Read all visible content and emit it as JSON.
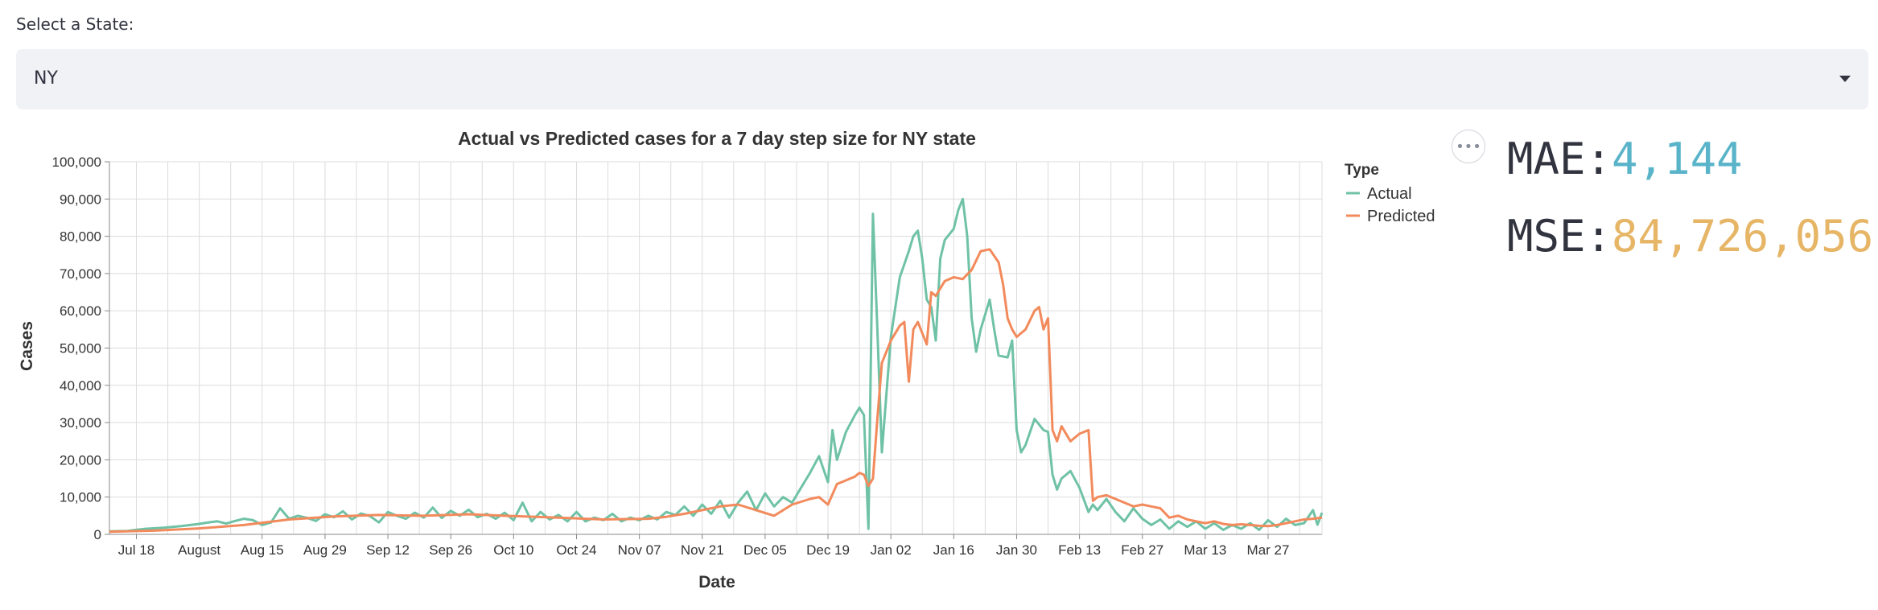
{
  "state_select": {
    "label": "Select a State:",
    "value": "NY"
  },
  "metrics": {
    "mae_label": "MAE:",
    "mae_value": "4,144",
    "mae_color": "#5ab4c9",
    "mse_label": "MSE:",
    "mse_value": "84,726,056",
    "mse_color": "#e6b566"
  },
  "chart_data": {
    "type": "line",
    "title": "Actual vs Predicted cases for a 7 day step size for NY state",
    "xlabel": "Date",
    "ylabel": "Cases",
    "ylim": [
      0,
      100000
    ],
    "y_ticks": [
      0,
      10000,
      20000,
      30000,
      40000,
      50000,
      60000,
      70000,
      80000,
      90000,
      100000
    ],
    "x_tick_labels": [
      "Jul 18",
      "August",
      "Aug 15",
      "Aug 29",
      "Sep 12",
      "Sep 26",
      "Oct 10",
      "Oct 24",
      "Nov 07",
      "Nov 21",
      "Dec 05",
      "Dec 19",
      "Jan 02",
      "Jan 16",
      "Jan 30",
      "Feb 13",
      "Feb 27",
      "Mar 13",
      "Mar 27"
    ],
    "x_tick_days": [
      6,
      20,
      34,
      48,
      62,
      76,
      90,
      104,
      118,
      132,
      146,
      160,
      174,
      188,
      202,
      216,
      230,
      244,
      258
    ],
    "x_range_days": [
      0,
      270
    ],
    "grid": true,
    "legend_title": "Type",
    "legend_position": "top-right",
    "series": [
      {
        "name": "Actual",
        "color": "#6fc2a5",
        "points": [
          [
            0,
            800
          ],
          [
            4,
            900
          ],
          [
            6,
            1200
          ],
          [
            8,
            1500
          ],
          [
            12,
            1800
          ],
          [
            16,
            2200
          ],
          [
            20,
            2800
          ],
          [
            22,
            3200
          ],
          [
            24,
            3500
          ],
          [
            26,
            2900
          ],
          [
            28,
            3600
          ],
          [
            30,
            4200
          ],
          [
            32,
            3800
          ],
          [
            34,
            2500
          ],
          [
            36,
            3200
          ],
          [
            38,
            7000
          ],
          [
            40,
            4200
          ],
          [
            42,
            5000
          ],
          [
            44,
            4400
          ],
          [
            46,
            3600
          ],
          [
            48,
            5400
          ],
          [
            50,
            4600
          ],
          [
            52,
            6200
          ],
          [
            54,
            4000
          ],
          [
            56,
            5600
          ],
          [
            58,
            4900
          ],
          [
            60,
            3200
          ],
          [
            62,
            6000
          ],
          [
            64,
            5000
          ],
          [
            66,
            4200
          ],
          [
            68,
            5800
          ],
          [
            70,
            4500
          ],
          [
            72,
            7200
          ],
          [
            74,
            4400
          ],
          [
            76,
            6300
          ],
          [
            78,
            5000
          ],
          [
            80,
            6600
          ],
          [
            82,
            4600
          ],
          [
            84,
            5500
          ],
          [
            86,
            4200
          ],
          [
            88,
            5800
          ],
          [
            90,
            3800
          ],
          [
            92,
            8500
          ],
          [
            94,
            3500
          ],
          [
            96,
            6000
          ],
          [
            98,
            4000
          ],
          [
            100,
            5200
          ],
          [
            102,
            3500
          ],
          [
            104,
            6000
          ],
          [
            106,
            3500
          ],
          [
            108,
            4500
          ],
          [
            110,
            3800
          ],
          [
            112,
            5500
          ],
          [
            114,
            3500
          ],
          [
            116,
            4500
          ],
          [
            118,
            3800
          ],
          [
            120,
            5000
          ],
          [
            122,
            4000
          ],
          [
            124,
            6000
          ],
          [
            126,
            5200
          ],
          [
            128,
            7500
          ],
          [
            130,
            5000
          ],
          [
            132,
            8000
          ],
          [
            134,
            5500
          ],
          [
            136,
            9000
          ],
          [
            138,
            4500
          ],
          [
            140,
            8500
          ],
          [
            142,
            11500
          ],
          [
            144,
            6500
          ],
          [
            146,
            11000
          ],
          [
            148,
            7500
          ],
          [
            150,
            10000
          ],
          [
            152,
            8500
          ],
          [
            154,
            12500
          ],
          [
            156,
            16500
          ],
          [
            158,
            21000
          ],
          [
            160,
            14000
          ],
          [
            161,
            28000
          ],
          [
            162,
            20000
          ],
          [
            164,
            27500
          ],
          [
            166,
            32000
          ],
          [
            167,
            34000
          ],
          [
            168,
            32000
          ],
          [
            169,
            1500
          ],
          [
            170,
            86000
          ],
          [
            171,
            55000
          ],
          [
            172,
            22000
          ],
          [
            174,
            53000
          ],
          [
            176,
            69000
          ],
          [
            178,
            76000
          ],
          [
            179,
            80000
          ],
          [
            180,
            81500
          ],
          [
            181,
            74000
          ],
          [
            182,
            63000
          ],
          [
            183,
            61000
          ],
          [
            184,
            52000
          ],
          [
            185,
            74000
          ],
          [
            186,
            79000
          ],
          [
            188,
            82000
          ],
          [
            189,
            87000
          ],
          [
            190,
            90000
          ],
          [
            191,
            80000
          ],
          [
            192,
            58000
          ],
          [
            193,
            49000
          ],
          [
            194,
            55000
          ],
          [
            196,
            63000
          ],
          [
            197,
            55000
          ],
          [
            198,
            48000
          ],
          [
            200,
            47500
          ],
          [
            201,
            52000
          ],
          [
            202,
            28000
          ],
          [
            203,
            22000
          ],
          [
            204,
            24000
          ],
          [
            206,
            31000
          ],
          [
            208,
            28000
          ],
          [
            209,
            27500
          ],
          [
            210,
            16000
          ],
          [
            211,
            12000
          ],
          [
            212,
            15000
          ],
          [
            214,
            17000
          ],
          [
            216,
            12500
          ],
          [
            218,
            6000
          ],
          [
            219,
            8000
          ],
          [
            220,
            6500
          ],
          [
            222,
            9500
          ],
          [
            224,
            6000
          ],
          [
            226,
            3500
          ],
          [
            228,
            7000
          ],
          [
            230,
            4200
          ],
          [
            232,
            2500
          ],
          [
            234,
            4000
          ],
          [
            236,
            1500
          ],
          [
            238,
            3500
          ],
          [
            240,
            2000
          ],
          [
            242,
            3500
          ],
          [
            244,
            1500
          ],
          [
            246,
            3000
          ],
          [
            248,
            1200
          ],
          [
            250,
            2500
          ],
          [
            252,
            1500
          ],
          [
            254,
            3000
          ],
          [
            256,
            1200
          ],
          [
            258,
            3800
          ],
          [
            260,
            2000
          ],
          [
            262,
            4200
          ],
          [
            264,
            2500
          ],
          [
            266,
            3000
          ],
          [
            268,
            6500
          ],
          [
            269,
            2600
          ],
          [
            270,
            5800
          ]
        ]
      },
      {
        "name": "Predicted",
        "color": "#f28a5c",
        "points": [
          [
            0,
            700
          ],
          [
            10,
            1000
          ],
          [
            20,
            1600
          ],
          [
            30,
            2500
          ],
          [
            40,
            4000
          ],
          [
            50,
            4800
          ],
          [
            60,
            5200
          ],
          [
            70,
            5000
          ],
          [
            80,
            5400
          ],
          [
            90,
            4900
          ],
          [
            100,
            4500
          ],
          [
            110,
            4000
          ],
          [
            120,
            4200
          ],
          [
            124,
            4700
          ],
          [
            128,
            5500
          ],
          [
            132,
            6500
          ],
          [
            136,
            7500
          ],
          [
            140,
            8000
          ],
          [
            144,
            6500
          ],
          [
            148,
            5000
          ],
          [
            152,
            8000
          ],
          [
            156,
            9500
          ],
          [
            158,
            10000
          ],
          [
            160,
            8000
          ],
          [
            162,
            13500
          ],
          [
            164,
            14500
          ],
          [
            166,
            15500
          ],
          [
            167,
            16500
          ],
          [
            168,
            16000
          ],
          [
            169,
            13000
          ],
          [
            170,
            15000
          ],
          [
            171,
            31000
          ],
          [
            172,
            46000
          ],
          [
            174,
            52000
          ],
          [
            176,
            56000
          ],
          [
            177,
            57000
          ],
          [
            178,
            41000
          ],
          [
            179,
            55000
          ],
          [
            180,
            57000
          ],
          [
            181,
            54000
          ],
          [
            182,
            51000
          ],
          [
            183,
            65000
          ],
          [
            184,
            64000
          ],
          [
            186,
            68000
          ],
          [
            188,
            69000
          ],
          [
            190,
            68500
          ],
          [
            192,
            71000
          ],
          [
            194,
            76000
          ],
          [
            196,
            76500
          ],
          [
            198,
            73000
          ],
          [
            199,
            67000
          ],
          [
            200,
            58000
          ],
          [
            201,
            55000
          ],
          [
            202,
            53000
          ],
          [
            204,
            55000
          ],
          [
            206,
            60000
          ],
          [
            207,
            61000
          ],
          [
            208,
            55000
          ],
          [
            209,
            58000
          ],
          [
            210,
            28000
          ],
          [
            211,
            25000
          ],
          [
            212,
            29000
          ],
          [
            214,
            25000
          ],
          [
            216,
            27000
          ],
          [
            218,
            28000
          ],
          [
            219,
            9000
          ],
          [
            220,
            10000
          ],
          [
            222,
            10500
          ],
          [
            224,
            9500
          ],
          [
            226,
            8500
          ],
          [
            228,
            7500
          ],
          [
            230,
            8000
          ],
          [
            232,
            7500
          ],
          [
            234,
            7000
          ],
          [
            236,
            4500
          ],
          [
            238,
            5000
          ],
          [
            240,
            4000
          ],
          [
            242,
            3500
          ],
          [
            244,
            3000
          ],
          [
            246,
            3500
          ],
          [
            248,
            2800
          ],
          [
            250,
            2500
          ],
          [
            252,
            2700
          ],
          [
            254,
            2500
          ],
          [
            256,
            2300
          ],
          [
            258,
            2200
          ],
          [
            260,
            2500
          ],
          [
            262,
            3000
          ],
          [
            264,
            3500
          ],
          [
            266,
            4000
          ],
          [
            268,
            4200
          ],
          [
            270,
            4500
          ]
        ]
      }
    ]
  }
}
